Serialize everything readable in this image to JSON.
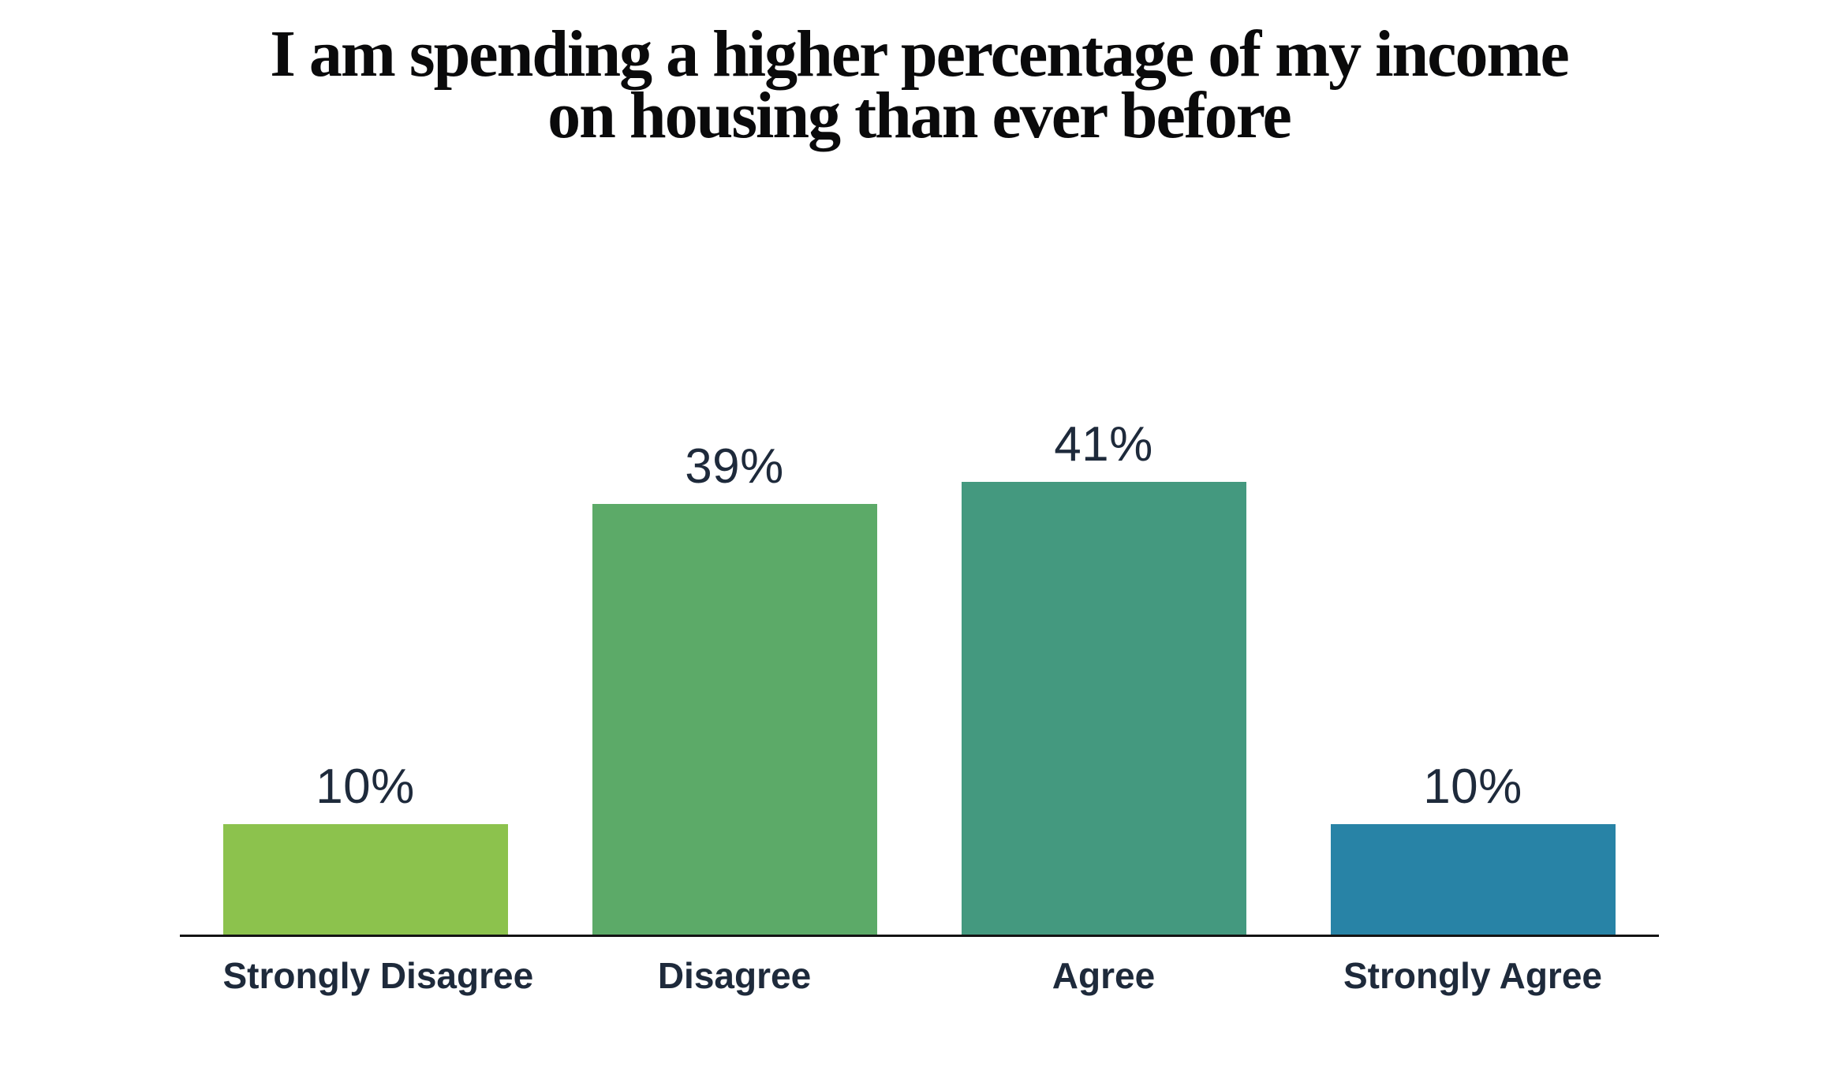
{
  "title": {
    "line1": "I am spending a higher percentage of my income",
    "line2": "on housing than ever before"
  },
  "chart_data": {
    "type": "bar",
    "title": "I am spending a higher percentage of my income on housing than ever before",
    "orientation": "vertical",
    "categories": [
      "Strongly Disagree",
      "Disagree",
      "Agree",
      "Strongly Agree"
    ],
    "values": [
      10,
      39,
      41,
      10
    ],
    "value_labels": [
      "10%",
      "39%",
      "41%",
      "10%"
    ],
    "series_colors": [
      "#8CC24D",
      "#5CAA68",
      "#44997F",
      "#2883A6"
    ],
    "ylim": [
      0,
      41
    ],
    "grid": false,
    "legend": "none",
    "value_label_position": "above-bar",
    "xlabel": "",
    "ylabel": ""
  },
  "style": {
    "text_color": "#1E2A3B",
    "title_color": "#0A0A0B",
    "axis_color": "#141414",
    "background": "#FFFFFF"
  }
}
